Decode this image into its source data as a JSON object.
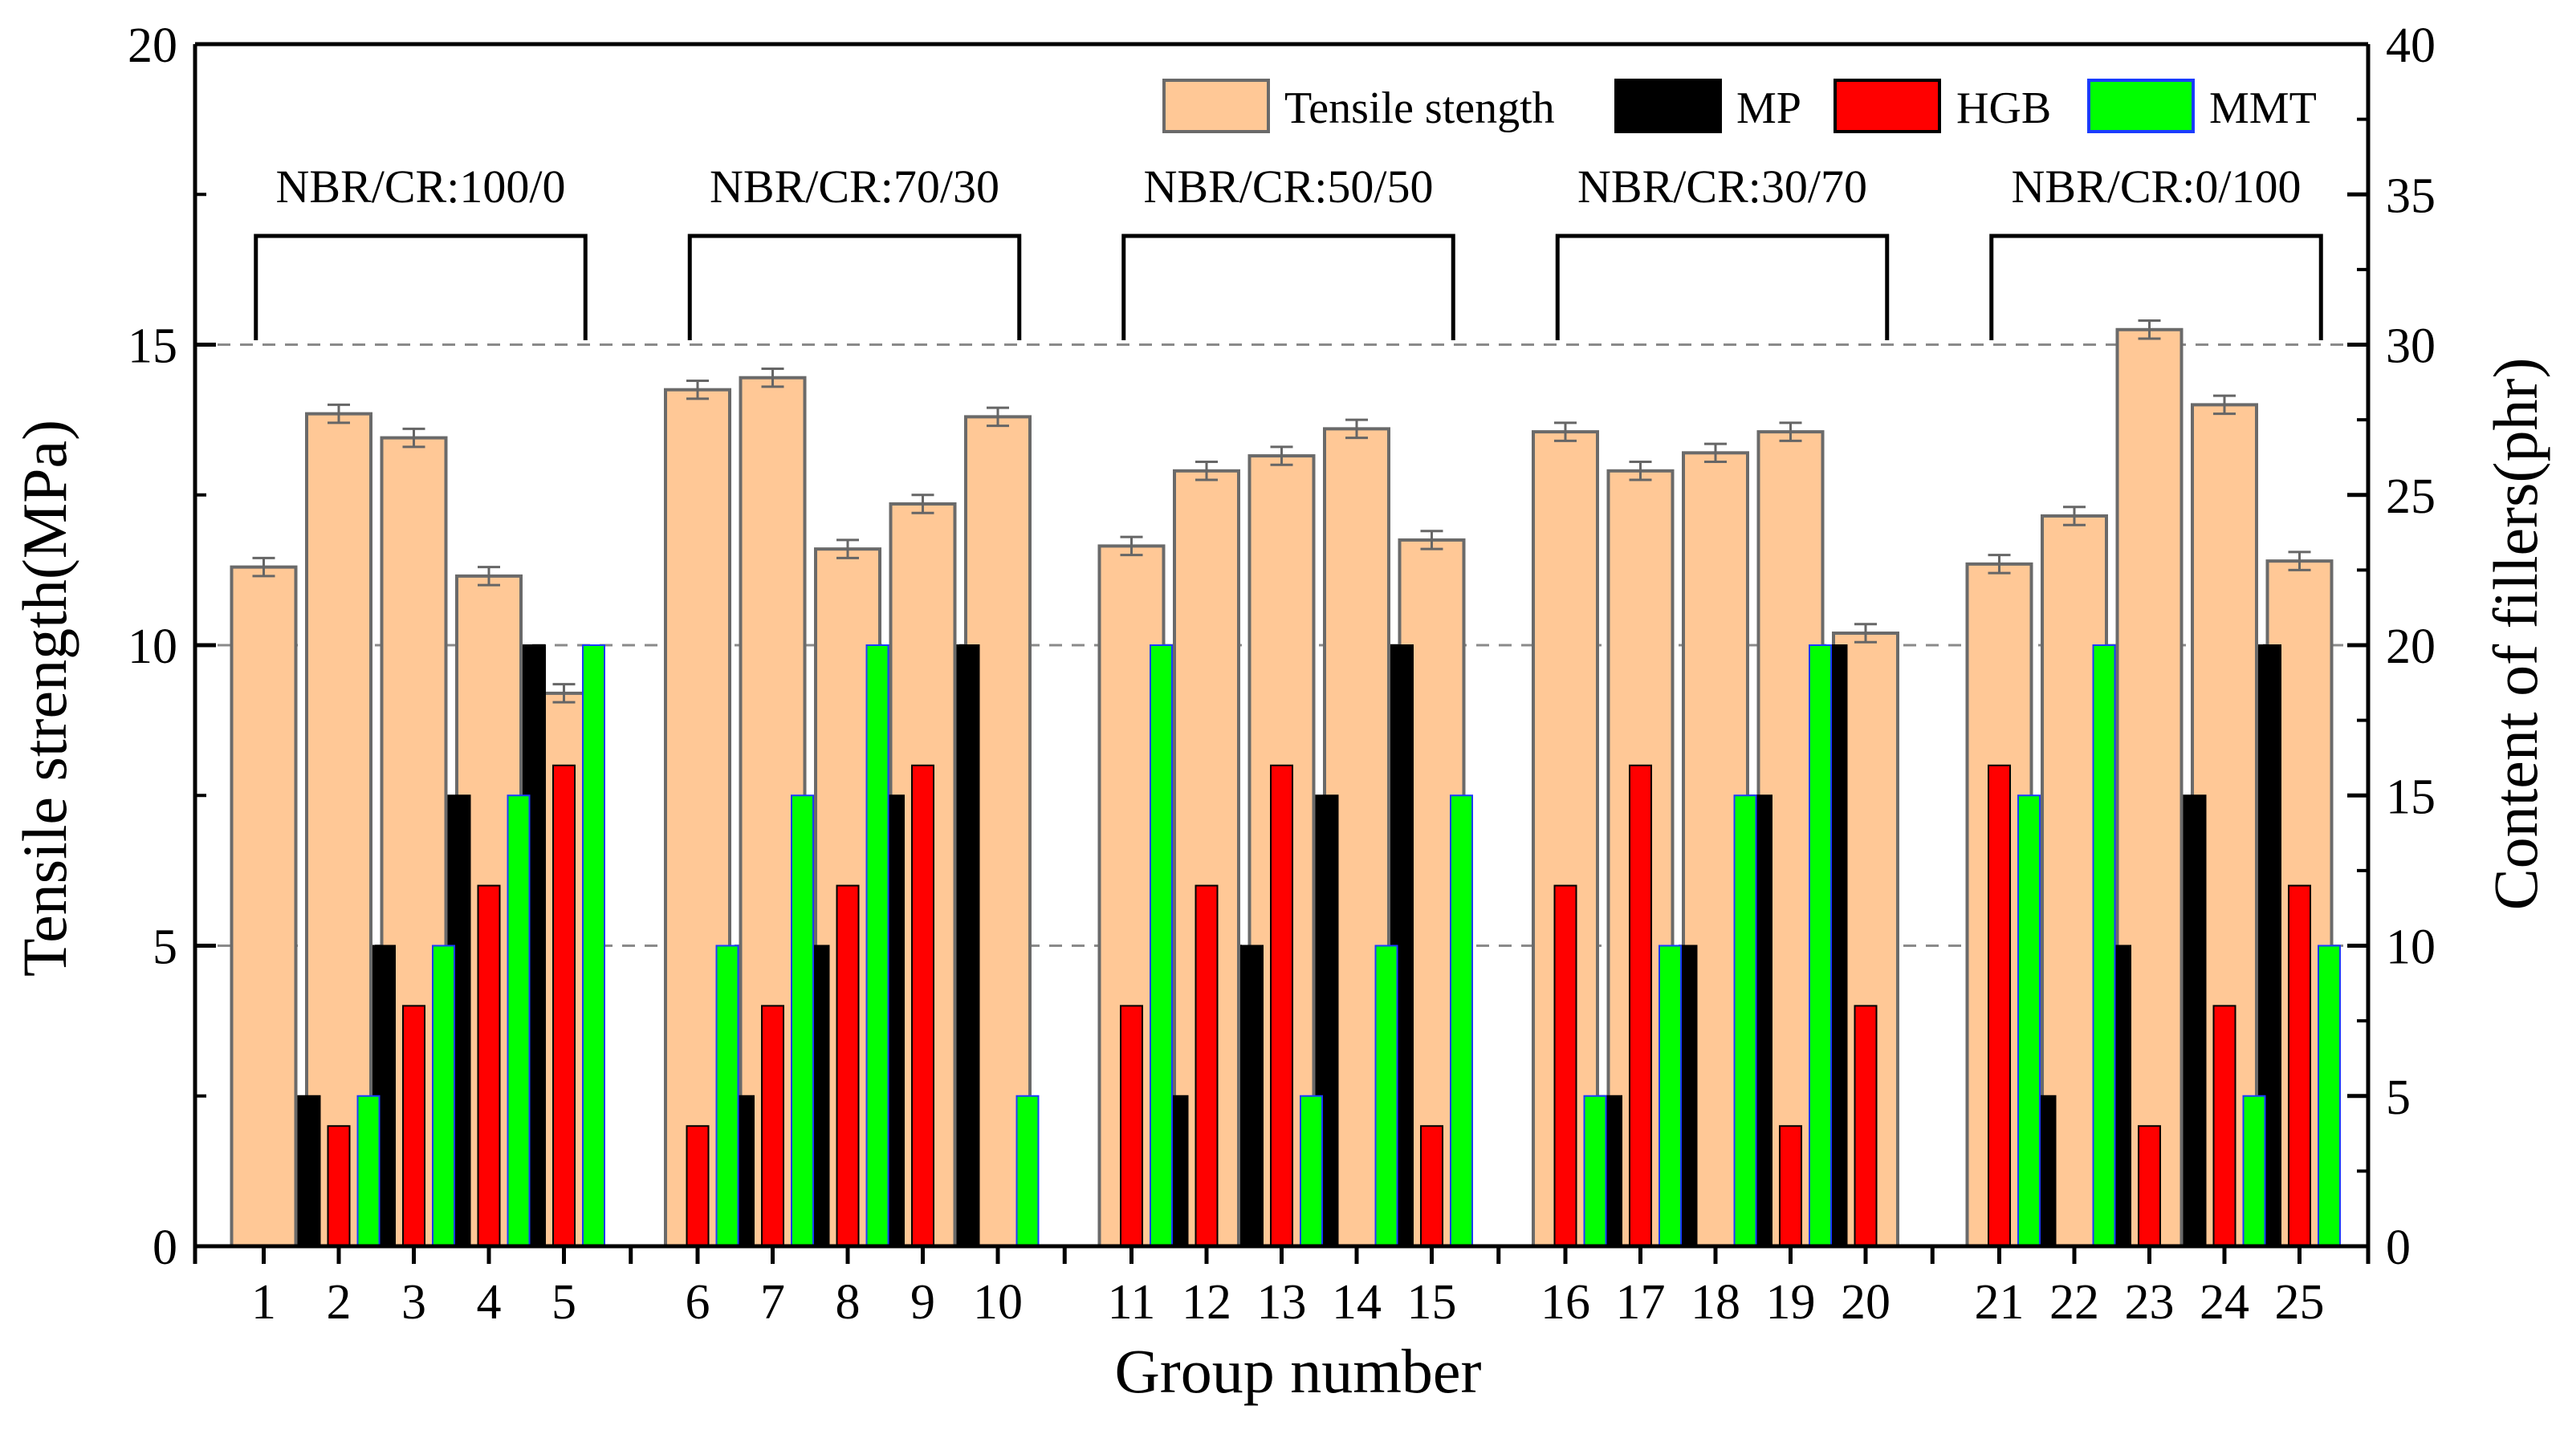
{
  "chart_data": {
    "type": "bar",
    "xlabel": "Group number",
    "ylabel_left": "Tensile strength(MPa)",
    "ylabel_right": "Content of fillers(phr)",
    "ylim_left": [
      0,
      20
    ],
    "ylim_right": [
      0,
      40
    ],
    "yticks_left": [
      0,
      5,
      10,
      15,
      20
    ],
    "yticks_right": [
      0,
      5,
      10,
      15,
      20,
      25,
      30,
      35,
      40
    ],
    "grid": "dashed horizontal lines at 5, 10, 15 MPa",
    "legend_position": "top-right",
    "categories": [
      "1",
      "2",
      "3",
      "4",
      "5",
      "6",
      "7",
      "8",
      "9",
      "10",
      "11",
      "12",
      "13",
      "14",
      "15",
      "16",
      "17",
      "18",
      "19",
      "20",
      "21",
      "22",
      "23",
      "24",
      "25"
    ],
    "series": [
      {
        "name": "Tensile stength",
        "axis": "left",
        "color": "#FFC896",
        "values": [
          11.3,
          13.85,
          13.45,
          11.15,
          9.2,
          14.25,
          14.45,
          11.6,
          12.35,
          13.8,
          11.65,
          12.9,
          13.15,
          13.6,
          11.75,
          13.55,
          12.9,
          13.2,
          13.55,
          10.2,
          11.35,
          12.15,
          15.25,
          14.0,
          11.4
        ],
        "error": 0.15
      },
      {
        "name": "MP",
        "axis": "right",
        "color": "#000000",
        "values": [
          0,
          5,
          10,
          15,
          20,
          0,
          5,
          10,
          15,
          20,
          0,
          5,
          10,
          15,
          20,
          0,
          5,
          10,
          15,
          20,
          0,
          5,
          10,
          15,
          20
        ]
      },
      {
        "name": "HGB",
        "axis": "right",
        "color": "#FF0000",
        "values": [
          0,
          4,
          8,
          12,
          16,
          4,
          8,
          12,
          16,
          0,
          8,
          12,
          16,
          0,
          4,
          12,
          16,
          0,
          4,
          8,
          16,
          0,
          4,
          8,
          12
        ]
      },
      {
        "name": "MMT",
        "axis": "right",
        "color": "#00FF00",
        "values": [
          0,
          5,
          10,
          15,
          20,
          10,
          15,
          20,
          0,
          5,
          20,
          0,
          5,
          10,
          15,
          5,
          10,
          15,
          20,
          0,
          15,
          20,
          0,
          5,
          10
        ]
      }
    ],
    "group_labels": [
      "NBR/CR:100/0",
      "NBR/CR:70/30",
      "NBR/CR:50/50",
      "NBR/CR:30/70",
      "NBR/CR:0/100"
    ]
  }
}
